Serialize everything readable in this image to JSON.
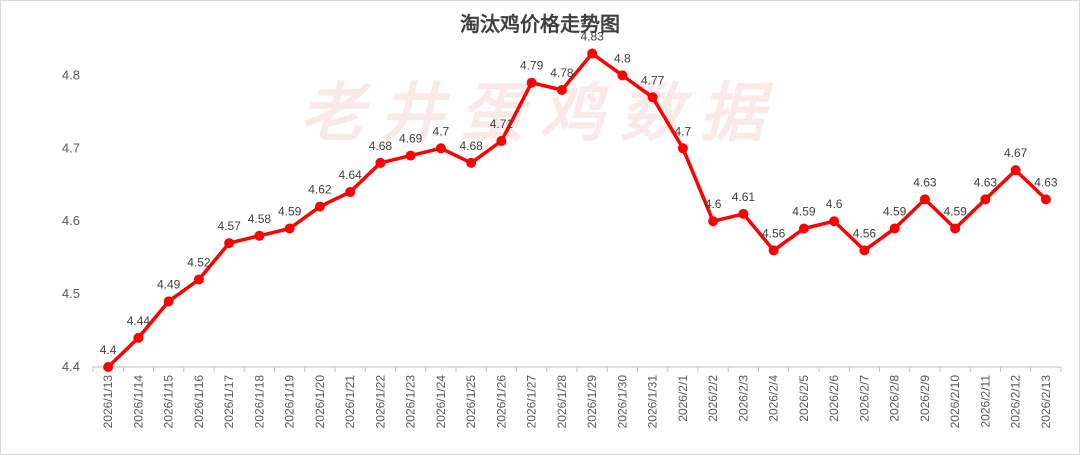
{
  "chart_data": {
    "type": "line",
    "title": "淘汰鸡价格走势图",
    "watermark": "老井蛋鸡数据",
    "xlabel": "",
    "ylabel": "",
    "ylim": [
      4.4,
      4.8
    ],
    "yticks": [
      4.4,
      4.5,
      4.6,
      4.7,
      4.8
    ],
    "grid": false,
    "legend": false,
    "categories": [
      "2026/1/13",
      "2026/1/14",
      "2026/1/15",
      "2026/1/16",
      "2026/1/17",
      "2026/1/18",
      "2026/1/19",
      "2026/1/20",
      "2026/1/21",
      "2026/1/22",
      "2026/1/23",
      "2026/1/24",
      "2026/1/25",
      "2026/1/26",
      "2026/1/27",
      "2026/1/28",
      "2026/1/29",
      "2026/1/30",
      "2026/1/31",
      "2026/2/1",
      "2026/2/2",
      "2026/2/3",
      "2026/2/4",
      "2026/2/5",
      "2026/2/6",
      "2026/2/7",
      "2026/2/8",
      "2026/2/9",
      "2026/2/10",
      "2026/2/11",
      "2026/2/12",
      "2026/2/13"
    ],
    "values": [
      4.4,
      4.44,
      4.49,
      4.52,
      4.57,
      4.58,
      4.59,
      4.62,
      4.64,
      4.68,
      4.69,
      4.7,
      4.68,
      4.71,
      4.79,
      4.78,
      4.83,
      4.8,
      4.77,
      4.7,
      4.6,
      4.61,
      4.56,
      4.59,
      4.6,
      4.56,
      4.59,
      4.63,
      4.59,
      4.63,
      4.67,
      4.63
    ],
    "labels": [
      "4.4",
      "4.44",
      "4.49",
      "4.52",
      "4.57",
      "4.58",
      "4.59",
      "4.62",
      "4.64",
      "4.68",
      "4.69",
      "4.7",
      "4.68",
      "4.71",
      "4.79",
      "4.78",
      "4.83",
      "4.8",
      "4.77",
      "4.7",
      "4.6",
      "4.61",
      "4.56",
      "4.59",
      "4.6",
      "4.56",
      "4.59",
      "4.63",
      "4.59",
      "4.63",
      "4.67",
      "4.63"
    ],
    "colors": {
      "line": "#ff0000",
      "axis": "#bfbfbf",
      "text": "#595959"
    }
  }
}
